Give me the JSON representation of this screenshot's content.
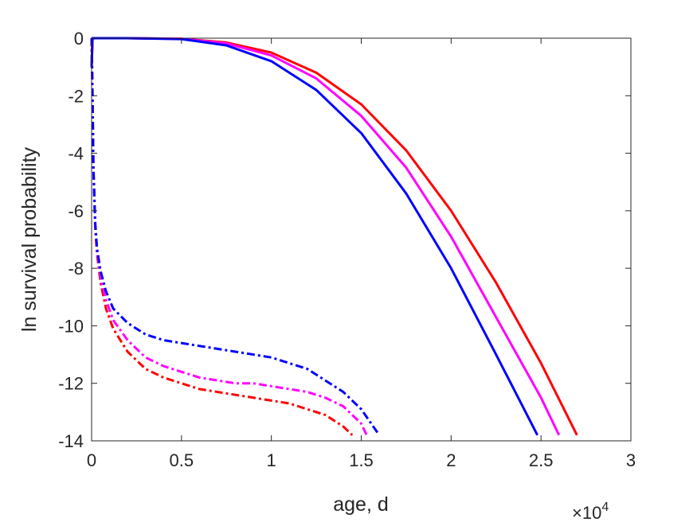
{
  "chart_data": {
    "type": "line",
    "xlabel": "age, d",
    "ylabel": "ln survival probability",
    "x_exponent_prefix": "×10",
    "x_exponent_power": "4",
    "xlim": [
      0,
      30000
    ],
    "ylim": [
      -14,
      0
    ],
    "x_ticks": [
      0,
      5000,
      10000,
      15000,
      20000,
      25000,
      30000
    ],
    "x_tick_labels": [
      "0",
      "0.5",
      "1",
      "1.5",
      "2",
      "2.5",
      "3"
    ],
    "y_ticks": [
      0,
      -2,
      -4,
      -6,
      -8,
      -10,
      -12,
      -14
    ],
    "y_tick_labels": [
      "0",
      "-2",
      "-4",
      "-6",
      "-8",
      "-10",
      "-12",
      "-14"
    ],
    "grid": false,
    "series": [
      {
        "color": "#ff0000",
        "style": "solid",
        "x": [
          0,
          50,
          100,
          2000,
          5000,
          7500,
          10000,
          12500,
          15000,
          17500,
          20000,
          22500,
          25000,
          27000
        ],
        "y": [
          -1.0,
          0,
          0,
          0,
          -0.02,
          -0.15,
          -0.5,
          -1.2,
          -2.3,
          -3.9,
          -6.0,
          -8.5,
          -11.3,
          -13.8
        ]
      },
      {
        "color": "#ff00ff",
        "style": "solid",
        "x": [
          0,
          50,
          100,
          2000,
          5000,
          7500,
          10000,
          12500,
          15000,
          17500,
          20000,
          22500,
          25000,
          26000
        ],
        "y": [
          -1.0,
          0,
          0,
          0,
          -0.02,
          -0.18,
          -0.6,
          -1.4,
          -2.7,
          -4.5,
          -6.9,
          -9.7,
          -12.5,
          -13.8
        ]
      },
      {
        "color": "#0000ff",
        "style": "solid",
        "x": [
          0,
          50,
          100,
          2000,
          5000,
          7500,
          10000,
          12500,
          15000,
          17500,
          20000,
          22500,
          24800
        ],
        "y": [
          -1.0,
          0,
          0,
          0,
          -0.03,
          -0.25,
          -0.8,
          -1.8,
          -3.3,
          -5.4,
          -8.0,
          -11.0,
          -13.8
        ]
      },
      {
        "color": "#ff0000",
        "style": "dashdot",
        "x": [
          0,
          50,
          100,
          200,
          300,
          500,
          800,
          1200,
          2000,
          3000,
          4000,
          5000,
          6000,
          7000,
          8000,
          9000,
          10000,
          11000,
          12000,
          13000,
          14000,
          14500
        ],
        "y": [
          0,
          -2,
          -4.5,
          -6.6,
          -7.5,
          -8.5,
          -9.4,
          -10.1,
          -10.9,
          -11.5,
          -11.8,
          -12.0,
          -12.2,
          -12.3,
          -12.4,
          -12.5,
          -12.6,
          -12.7,
          -12.9,
          -13.1,
          -13.5,
          -13.8
        ]
      },
      {
        "color": "#ff00ff",
        "style": "dashdot",
        "x": [
          0,
          50,
          100,
          200,
          300,
          500,
          800,
          1200,
          2000,
          3000,
          4000,
          5000,
          6000,
          7000,
          8000,
          9000,
          10000,
          11000,
          12000,
          13000,
          14000,
          15000,
          15300
        ],
        "y": [
          0,
          -2,
          -4.5,
          -6.5,
          -7.4,
          -8.3,
          -9.1,
          -9.8,
          -10.5,
          -11.1,
          -11.4,
          -11.6,
          -11.8,
          -11.9,
          -12.0,
          -12.0,
          -12.1,
          -12.2,
          -12.3,
          -12.5,
          -12.8,
          -13.4,
          -13.8
        ]
      },
      {
        "color": "#0000ff",
        "style": "dashdot",
        "x": [
          0,
          50,
          100,
          200,
          300,
          500,
          800,
          1200,
          2000,
          3000,
          4000,
          5000,
          6000,
          7000,
          8000,
          9000,
          10000,
          11000,
          12000,
          13000,
          14000,
          15000,
          16000
        ],
        "y": [
          0,
          -2,
          -4.5,
          -6.4,
          -7.3,
          -8.1,
          -8.8,
          -9.4,
          -9.9,
          -10.3,
          -10.5,
          -10.6,
          -10.7,
          -10.8,
          -10.9,
          -11.0,
          -11.1,
          -11.3,
          -11.5,
          -11.9,
          -12.3,
          -12.9,
          -13.8
        ]
      }
    ]
  }
}
